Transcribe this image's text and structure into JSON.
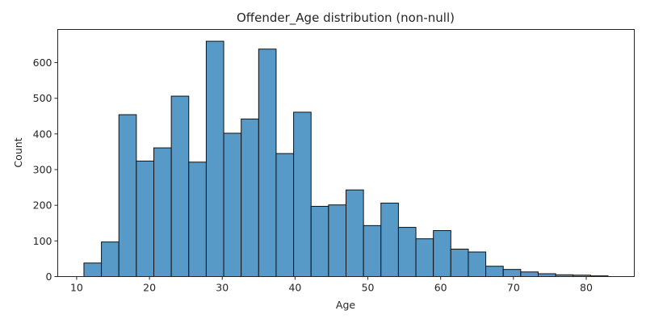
{
  "chart_data": {
    "type": "bar",
    "title": "Offender_Age distribution (non-null)",
    "xlabel": "Age",
    "ylabel": "Count",
    "xlim": [
      7.4,
      86.6
    ],
    "ylim": [
      0,
      693
    ],
    "xticks": [
      10,
      20,
      30,
      40,
      50,
      60,
      70,
      80
    ],
    "yticks": [
      0,
      100,
      200,
      300,
      400,
      500,
      600
    ],
    "bins": {
      "start": 11,
      "width": 2.4,
      "counts": [
        38,
        97,
        454,
        324,
        361,
        506,
        321,
        660,
        402,
        442,
        638,
        345,
        461,
        197,
        201,
        243,
        143,
        206,
        138,
        106,
        129,
        77,
        69,
        29,
        20,
        13,
        8,
        5,
        4,
        2
      ]
    },
    "colors": {
      "bar_fill": "#5799c7",
      "bar_edge": "#111111",
      "axis": "#262626"
    },
    "grid": false,
    "legend": "none"
  }
}
